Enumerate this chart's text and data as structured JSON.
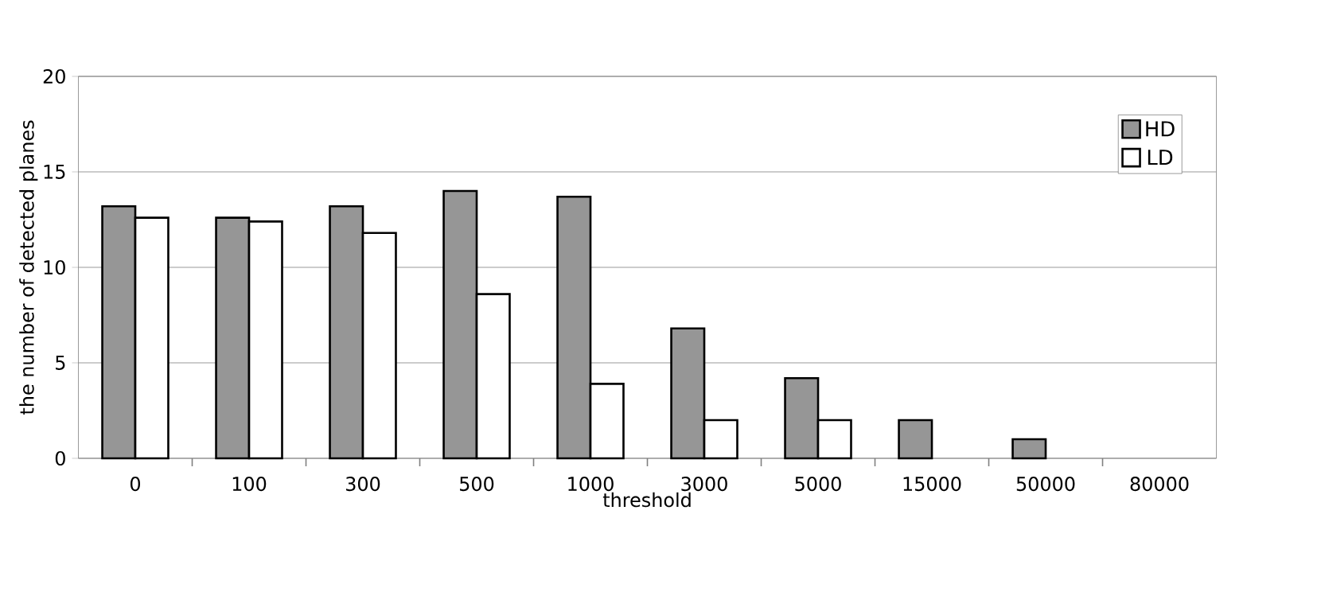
{
  "chart_data": {
    "type": "bar",
    "xlabel": "threshold",
    "ylabel": "the number of detected planes",
    "categories": [
      "0",
      "100",
      "300",
      "500",
      "1000",
      "3000",
      "5000",
      "15000",
      "50000",
      "80000"
    ],
    "series": [
      {
        "name": "HD",
        "color": "#969696",
        "values": [
          13.2,
          12.6,
          13.2,
          14,
          13.7,
          6.8,
          4.2,
          2,
          1,
          0
        ]
      },
      {
        "name": "LD",
        "color": "#ffffff",
        "values": [
          12.6,
          12.4,
          11.8,
          8.6,
          3.9,
          2,
          2,
          0,
          0,
          0
        ]
      }
    ],
    "ylim": [
      0,
      20
    ],
    "yticks": [
      0,
      5,
      10,
      15,
      20
    ],
    "grid": "y",
    "legend": "top right"
  }
}
